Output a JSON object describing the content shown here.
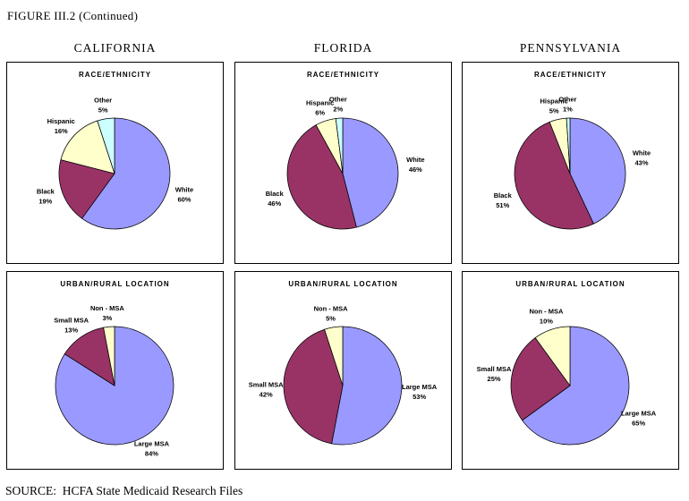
{
  "figure": {
    "title": "FIGURE III.2 (Continued)",
    "source": "SOURCE:  HCFA State Medicaid Research Files"
  },
  "columns": [
    {
      "label": "CALIFORNIA"
    },
    {
      "label": "FLORIDA"
    },
    {
      "label": "PENNSYLVANIA"
    }
  ],
  "palette": {
    "slice1": "#9999FF",
    "slice2": "#993366",
    "slice3": "#FFFFCC",
    "slice4": "#CCFFFF"
  },
  "chart_data": [
    {
      "id": "california-race",
      "state": "CALIFORNIA",
      "row": "race",
      "type": "pie",
      "title": "RACE/ETHNICITY",
      "labels": [
        "White",
        "Black",
        "Hispanic",
        "Other"
      ],
      "values": [
        60,
        19,
        16,
        5
      ],
      "value_labels": [
        "60%",
        "19%",
        "16%",
        "5%"
      ],
      "colors": [
        "#9999FF",
        "#993366",
        "#FFFFCC",
        "#CCFFFF"
      ],
      "start_angle_deg": 0,
      "direction": "clockwise",
      "legend": "none"
    },
    {
      "id": "florida-race",
      "state": "FLORIDA",
      "row": "race",
      "type": "pie",
      "title": "RACE/ETHNICITY",
      "labels": [
        "White",
        "Black",
        "Hispanic",
        "Other"
      ],
      "values": [
        46,
        46,
        6,
        2
      ],
      "value_labels": [
        "46%",
        "46%",
        "6%",
        "2%"
      ],
      "colors": [
        "#9999FF",
        "#993366",
        "#FFFFCC",
        "#CCFFFF"
      ],
      "start_angle_deg": 0,
      "direction": "clockwise",
      "legend": "none"
    },
    {
      "id": "pennsylvania-race",
      "state": "PENNSYLVANIA",
      "row": "race",
      "type": "pie",
      "title": "RACE/ETHNICITY",
      "labels": [
        "White",
        "Black",
        "Hispanic",
        "Other"
      ],
      "values": [
        43,
        51,
        5,
        1
      ],
      "value_labels": [
        "43%",
        "51%",
        "5%",
        "1%"
      ],
      "colors": [
        "#9999FF",
        "#993366",
        "#FFFFCC",
        "#CCFFFF"
      ],
      "start_angle_deg": 0,
      "direction": "clockwise",
      "legend": "none"
    },
    {
      "id": "california-urban",
      "state": "CALIFORNIA",
      "row": "urban",
      "type": "pie",
      "title": "URBAN/RURAL LOCATION",
      "labels": [
        "Large MSA",
        "Small MSA",
        "Non - MSA"
      ],
      "values": [
        84,
        13,
        3
      ],
      "value_labels": [
        "84%",
        "13%",
        "3%"
      ],
      "colors": [
        "#9999FF",
        "#993366",
        "#FFFFCC"
      ],
      "start_angle_deg": 0,
      "direction": "clockwise",
      "legend": "none"
    },
    {
      "id": "florida-urban",
      "state": "FLORIDA",
      "row": "urban",
      "type": "pie",
      "title": "URBAN/RURAL LOCATION",
      "labels": [
        "Large MSA",
        "Small MSA",
        "Non - MSA"
      ],
      "values": [
        53,
        42,
        5
      ],
      "value_labels": [
        "53%",
        "42%",
        "5%"
      ],
      "colors": [
        "#9999FF",
        "#993366",
        "#FFFFCC"
      ],
      "start_angle_deg": 0,
      "direction": "clockwise",
      "legend": "none"
    },
    {
      "id": "pennsylvania-urban",
      "state": "PENNSYLVANIA",
      "row": "urban",
      "type": "pie",
      "title": "URBAN/RURAL LOCATION",
      "labels": [
        "Large MSA",
        "Small MSA",
        "Non - MSA"
      ],
      "values": [
        65,
        25,
        10
      ],
      "value_labels": [
        "65%",
        "25%",
        "10%"
      ],
      "colors": [
        "#9999FF",
        "#993366",
        "#FFFFCC"
      ],
      "start_angle_deg": 0,
      "direction": "clockwise",
      "legend": "none"
    }
  ]
}
